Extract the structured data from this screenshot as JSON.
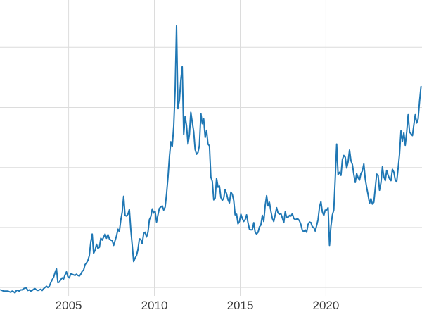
{
  "page": {
    "background_color": "#ffffff"
  },
  "chart_data": {
    "type": "line",
    "description": "Long-term commodity spot price time series (silver, USD per oz), 2001 to mid-2025",
    "line_color": "#1f77b4",
    "grid_color": "#dcdcdc",
    "tick_label_color": "#3b3b3b",
    "legend": "none",
    "grid": "on",
    "xlim": [
      2001.0,
      2025.6
    ],
    "ylim": [
      3.6,
      52.9
    ],
    "x_ticks": [
      {
        "value": 2005,
        "label": "2005"
      },
      {
        "value": 2010,
        "label": "2010"
      },
      {
        "value": 2015,
        "label": "2015"
      },
      {
        "value": 2020,
        "label": "2020"
      }
    ],
    "y_gridlines": [
      5,
      15,
      25,
      35,
      45
    ],
    "monthly": [
      {
        "year": 2001,
        "values": [
          4.6,
          4.5,
          4.4,
          4.4,
          4.4,
          4.4,
          4.3,
          4.2,
          4.4,
          4.3,
          4.1,
          4.5
        ]
      },
      {
        "year": 2002,
        "values": [
          4.5,
          4.4,
          4.6,
          4.6,
          4.8,
          4.9,
          4.9,
          4.5,
          4.6,
          4.4,
          4.5,
          4.7
        ]
      },
      {
        "year": 2003,
        "values": [
          4.8,
          4.6,
          4.5,
          4.6,
          4.7,
          4.5,
          4.8,
          5.0,
          5.2,
          5.0,
          5.2,
          5.8
        ]
      },
      {
        "year": 2004,
        "values": [
          6.3,
          6.7,
          7.5,
          8.1,
          5.8,
          5.9,
          6.3,
          6.6,
          6.4,
          7.1,
          7.6,
          6.8
        ]
      },
      {
        "year": 2005,
        "values": [
          6.6,
          7.3,
          7.2,
          7.1,
          7.0,
          7.2,
          7.0,
          6.9,
          7.2,
          7.7,
          7.9,
          8.8
        ]
      },
      {
        "year": 2006,
        "values": [
          9.1,
          9.5,
          10.3,
          12.6,
          13.9,
          10.7,
          11.2,
          12.2,
          11.5,
          11.7,
          13.2,
          12.9
        ]
      },
      {
        "year": 2007,
        "values": [
          13.4,
          13.9,
          13.2,
          13.8,
          13.1,
          12.9,
          12.8,
          12.0,
          12.8,
          13.6,
          14.7,
          14.3
        ]
      },
      {
        "year": 2008,
        "values": [
          16.2,
          17.6,
          20.2,
          17.0,
          16.9,
          17.2,
          18.0,
          14.6,
          12.0,
          9.3,
          9.9,
          10.3
        ]
      },
      {
        "year": 2009,
        "values": [
          11.3,
          13.1,
          13.0,
          12.3,
          14.0,
          14.2,
          13.4,
          14.2,
          16.3,
          16.8,
          18.1,
          17.4
        ]
      },
      {
        "year": 2010,
        "values": [
          17.7,
          15.9,
          17.1,
          18.2,
          18.4,
          18.6,
          17.9,
          18.4,
          20.6,
          23.3,
          26.8,
          29.3
        ]
      },
      {
        "year": 2011,
        "values": [
          28.5,
          31.9,
          37.9,
          48.6,
          34.8,
          36.2,
          39.6,
          41.8,
          30.5,
          33.5,
          32.0,
          28.9
        ]
      },
      {
        "year": 2012,
        "values": [
          30.5,
          34.2,
          32.5,
          31.0,
          28.0,
          27.2,
          27.5,
          28.7,
          34.0,
          32.3,
          33.1,
          30.0
        ]
      },
      {
        "year": 2013,
        "values": [
          31.2,
          28.9,
          28.6,
          23.4,
          22.7,
          19.6,
          19.9,
          23.2,
          21.7,
          21.9,
          20.0,
          19.5
        ]
      },
      {
        "year": 2014,
        "values": [
          19.9,
          21.3,
          20.6,
          19.6,
          19.1,
          20.9,
          20.5,
          19.5,
          17.1,
          17.2,
          15.6,
          16.0
        ]
      },
      {
        "year": 2015,
        "values": [
          17.2,
          16.5,
          16.0,
          16.3,
          17.1,
          15.8,
          14.7,
          14.6,
          14.6,
          15.8,
          14.2,
          13.9
        ]
      },
      {
        "year": 2016,
        "values": [
          14.2,
          15.1,
          15.4,
          17.0,
          16.0,
          18.6,
          20.3,
          18.6,
          19.2,
          17.7,
          16.5,
          16.0
        ]
      },
      {
        "year": 2017,
        "values": [
          17.1,
          18.3,
          17.4,
          17.2,
          17.3,
          16.6,
          15.8,
          17.6,
          16.7,
          16.7,
          17.0,
          16.9
        ]
      },
      {
        "year": 2018,
        "values": [
          17.3,
          16.5,
          16.3,
          16.4,
          16.4,
          16.1,
          15.5,
          14.5,
          14.3,
          14.6,
          14.2,
          15.5
        ]
      },
      {
        "year": 2019,
        "values": [
          15.9,
          15.8,
          15.1,
          15.0,
          14.4,
          15.3,
          16.3,
          18.4,
          19.3,
          17.6,
          17.0,
          17.9
        ]
      },
      {
        "year": 2020,
        "values": [
          17.9,
          18.3,
          12.0,
          15.2,
          17.1,
          17.9,
          23.0,
          28.9,
          23.8,
          24.2,
          23.7,
          26.3
        ]
      },
      {
        "year": 2021,
        "values": [
          27.0,
          26.7,
          24.9,
          25.9,
          27.9,
          26.1,
          25.5,
          23.9,
          22.5,
          24.0,
          23.3,
          22.9
        ]
      },
      {
        "year": 2022,
        "values": [
          24.0,
          24.4,
          25.6,
          23.1,
          21.7,
          20.4,
          19.0,
          19.8,
          18.9,
          19.2,
          21.5,
          23.9
        ]
      },
      {
        "year": 2023,
        "values": [
          23.7,
          21.2,
          22.5,
          25.1,
          23.5,
          22.8,
          24.5,
          23.7,
          23.1,
          22.8,
          24.7,
          24.2
        ]
      },
      {
        "year": 2024,
        "values": [
          22.9,
          22.6,
          24.9,
          27.3,
          31.1,
          29.4,
          30.8,
          28.7,
          31.0,
          33.8,
          30.9,
          30.6
        ]
      },
      {
        "year": 2025,
        "values": [
          30.3,
          32.1,
          33.8,
          32.4,
          33.1,
          36.0,
          38.5
        ]
      }
    ]
  }
}
